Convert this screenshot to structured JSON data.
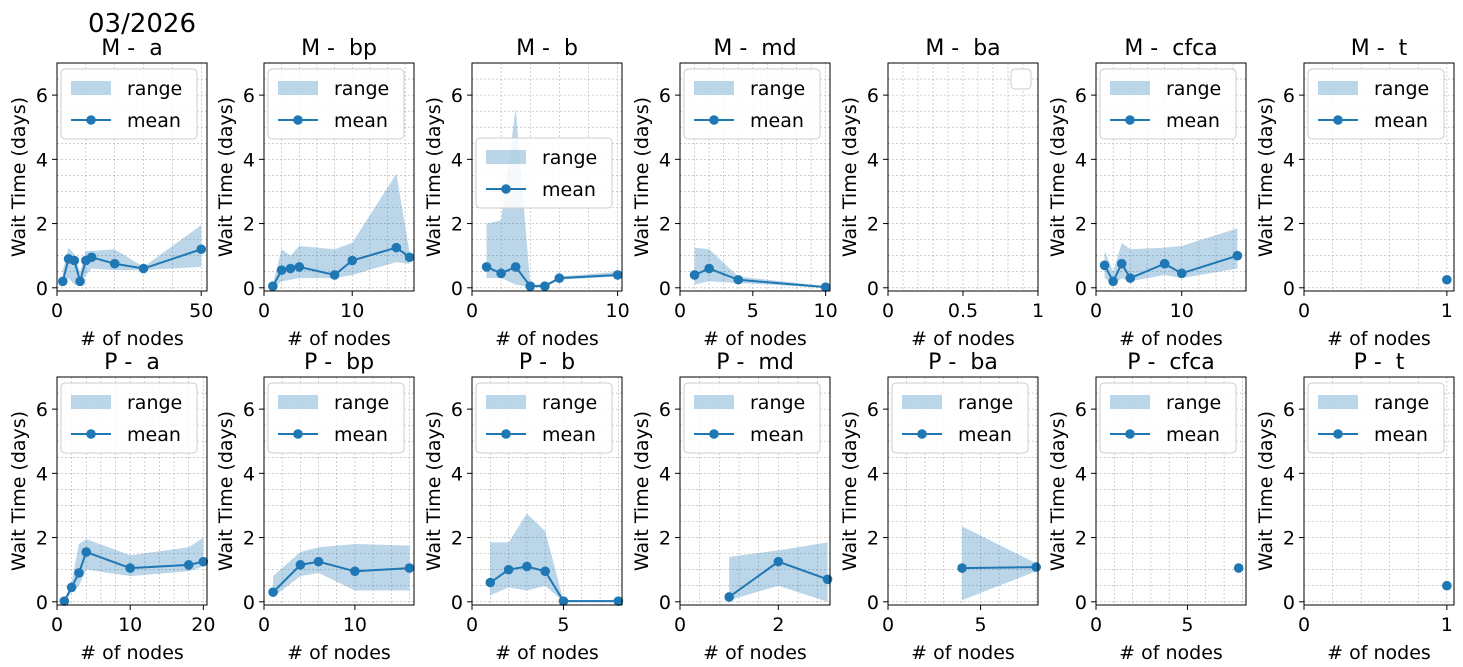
{
  "figure_title": "03/2026",
  "colors": {
    "line": "#1f77b4",
    "band": "#1f77b4",
    "grid": "#b0b0b0"
  },
  "legend_labels": {
    "range": "range",
    "mean": "mean"
  },
  "chart_data": [
    {
      "type": "line",
      "title": "M -  a",
      "xlabel": "# of nodes",
      "ylabel": "Wait Time (days)",
      "xlim": [
        0,
        52
      ],
      "ylim": [
        -0.1,
        7
      ],
      "xticks": [
        0,
        50
      ],
      "yticks": [
        0,
        2,
        4,
        6
      ],
      "grid": true,
      "legend": "upper-right",
      "x": [
        2,
        4,
        6,
        8,
        10,
        12,
        20,
        30,
        50
      ],
      "mean": [
        0.2,
        0.9,
        0.85,
        0.2,
        0.85,
        0.95,
        0.75,
        0.6,
        1.2
      ],
      "min": [
        0.05,
        0.3,
        0.1,
        0.05,
        0.4,
        0.6,
        0.55,
        0.55,
        0.65
      ],
      "max": [
        0.55,
        1.25,
        1.05,
        0.5,
        1.15,
        1.15,
        1.2,
        0.65,
        1.95
      ]
    },
    {
      "type": "line",
      "title": "M -  bp",
      "xlabel": "# of nodes",
      "ylabel": "Wait Time (days)",
      "xlim": [
        0,
        17
      ],
      "ylim": [
        -0.1,
        7
      ],
      "xticks": [
        0,
        10
      ],
      "yticks": [
        0,
        2,
        4,
        6
      ],
      "grid": true,
      "legend": "upper-right",
      "x": [
        1,
        2,
        3,
        4,
        8,
        10,
        15,
        16.5
      ],
      "mean": [
        0.05,
        0.55,
        0.6,
        0.65,
        0.4,
        0.85,
        1.25,
        0.95
      ],
      "min": [
        0,
        0.2,
        0.25,
        0.3,
        0.3,
        0.4,
        0.8,
        0.75
      ],
      "max": [
        0.1,
        1.2,
        1.0,
        1.3,
        1.2,
        1.4,
        3.55,
        1.1
      ]
    },
    {
      "type": "line",
      "title": "M -  b",
      "xlabel": "# of nodes",
      "ylabel": "Wait Time (days)",
      "xlim": [
        0,
        10.3
      ],
      "ylim": [
        -0.1,
        7
      ],
      "xticks": [
        0,
        10
      ],
      "yticks": [
        0,
        2,
        4,
        6
      ],
      "grid": true,
      "legend": "center-right",
      "x": [
        1,
        2,
        3,
        4,
        5,
        6,
        10
      ],
      "mean": [
        0.65,
        0.45,
        0.65,
        0.05,
        0.05,
        0.3,
        0.4
      ],
      "min": [
        0.3,
        0.3,
        0.1,
        0.02,
        0.02,
        0.25,
        0.35
      ],
      "max": [
        2.0,
        2.1,
        5.6,
        0.1,
        0.1,
        0.35,
        0.5
      ]
    },
    {
      "type": "line",
      "title": "M -  md",
      "xlabel": "# of nodes",
      "ylabel": "Wait Time (days)",
      "xlim": [
        0,
        10.3
      ],
      "ylim": [
        -0.1,
        7
      ],
      "xticks": [
        0,
        5,
        10
      ],
      "yticks": [
        0,
        2,
        4,
        6
      ],
      "grid": true,
      "legend": "upper-right",
      "x": [
        1,
        2,
        4,
        10
      ],
      "mean": [
        0.4,
        0.6,
        0.25,
        0.02
      ],
      "min": [
        0.1,
        0.2,
        0.15,
        0.0
      ],
      "max": [
        1.25,
        1.2,
        0.35,
        0.05
      ]
    },
    {
      "type": "line",
      "title": "M -  ba",
      "xlabel": "# of nodes",
      "ylabel": "Wait Time (days)",
      "xlim": [
        0,
        1
      ],
      "ylim": [
        -0.1,
        7
      ],
      "xticks": [
        0.0,
        0.5,
        1.0
      ],
      "yticks": [
        0,
        2,
        4,
        6
      ],
      "grid": true,
      "legend": "upper-right-empty",
      "x": [],
      "mean": [],
      "min": [],
      "max": []
    },
    {
      "type": "line",
      "title": "M -  cfca",
      "xlabel": "# of nodes",
      "ylabel": "Wait Time (days)",
      "xlim": [
        0,
        17.5
      ],
      "ylim": [
        -0.1,
        7
      ],
      "xticks": [
        0,
        10
      ],
      "yticks": [
        0,
        2,
        4,
        6
      ],
      "grid": true,
      "legend": "upper-right",
      "x": [
        1,
        2,
        3,
        4,
        8,
        10,
        16.5
      ],
      "mean": [
        0.7,
        0.2,
        0.75,
        0.3,
        0.75,
        0.45,
        1.0
      ],
      "min": [
        0.3,
        0.1,
        0.3,
        0.2,
        0.4,
        0.3,
        0.6
      ],
      "max": [
        1.15,
        0.5,
        1.4,
        1.2,
        1.25,
        1.3,
        1.85
      ]
    },
    {
      "type": "line",
      "title": "M -  t",
      "xlabel": "# of nodes",
      "ylabel": "Wait Time (days)",
      "xlim": [
        0,
        1.05
      ],
      "ylim": [
        -0.1,
        7
      ],
      "xticks": [
        0,
        1
      ],
      "yticks": [
        0,
        2,
        4,
        6
      ],
      "grid": true,
      "legend": "upper-right",
      "x": [
        1
      ],
      "mean": [
        0.25
      ],
      "min": [
        0.25
      ],
      "max": [
        0.25
      ]
    },
    {
      "type": "line",
      "title": "P -  a",
      "xlabel": "# of nodes",
      "ylabel": "Wait Time (days)",
      "xlim": [
        0,
        20.5
      ],
      "ylim": [
        -0.1,
        7
      ],
      "xticks": [
        0,
        10,
        20
      ],
      "yticks": [
        0,
        2,
        4,
        6
      ],
      "grid": true,
      "legend": "upper-right",
      "x": [
        1,
        2,
        3,
        4,
        10,
        18,
        20
      ],
      "mean": [
        0.02,
        0.45,
        0.9,
        1.55,
        1.05,
        1.15,
        1.25
      ],
      "min": [
        0.0,
        0.3,
        0.5,
        1.0,
        0.8,
        0.95,
        1.1
      ],
      "max": [
        0.05,
        0.6,
        1.8,
        1.95,
        1.45,
        1.7,
        2.0
      ]
    },
    {
      "type": "line",
      "title": "P -  bp",
      "xlabel": "# of nodes",
      "ylabel": "Wait Time (days)",
      "xlim": [
        0,
        16.5
      ],
      "ylim": [
        -0.1,
        7
      ],
      "xticks": [
        0,
        10
      ],
      "yticks": [
        0,
        2,
        4,
        6
      ],
      "grid": true,
      "legend": "upper-right",
      "x": [
        1,
        4,
        6,
        10,
        16
      ],
      "mean": [
        0.3,
        1.15,
        1.25,
        0.95,
        1.05
      ],
      "min": [
        0.15,
        0.8,
        0.9,
        0.35,
        0.35
      ],
      "max": [
        0.8,
        1.55,
        1.7,
        1.8,
        1.75
      ]
    },
    {
      "type": "line",
      "title": "P -  b",
      "xlabel": "# of nodes",
      "ylabel": "Wait Time (days)",
      "xlim": [
        0,
        8.2
      ],
      "ylim": [
        -0.1,
        7
      ],
      "xticks": [
        0,
        5
      ],
      "yticks": [
        0,
        2,
        4,
        6
      ],
      "grid": true,
      "legend": "upper-right",
      "x": [
        1,
        2,
        3,
        4,
        5,
        8
      ],
      "mean": [
        0.6,
        1.0,
        1.1,
        0.95,
        0.02,
        0.02
      ],
      "min": [
        0.2,
        0.45,
        0.35,
        0.5,
        0.0,
        0.0
      ],
      "max": [
        1.85,
        1.85,
        2.75,
        2.2,
        0.05,
        0.05
      ]
    },
    {
      "type": "line",
      "title": "P -  md",
      "xlabel": "# of nodes",
      "ylabel": "Wait Time (days)",
      "xlim": [
        0,
        3.05
      ],
      "ylim": [
        -0.1,
        7
      ],
      "xticks": [
        0,
        2
      ],
      "yticks": [
        0,
        2,
        4,
        6
      ],
      "grid": true,
      "legend": "upper-right",
      "x": [
        1,
        2,
        3
      ],
      "mean": [
        0.15,
        1.25,
        0.7
      ],
      "min": [
        0.05,
        0.5,
        0.0
      ],
      "max": [
        1.4,
        1.6,
        1.85
      ]
    },
    {
      "type": "line",
      "title": "P -  ba",
      "xlabel": "# of nodes",
      "ylabel": "Wait Time (days)",
      "xlim": [
        0,
        8.1
      ],
      "ylim": [
        -0.1,
        7
      ],
      "xticks": [
        0,
        5
      ],
      "yticks": [
        0,
        2,
        4,
        6
      ],
      "grid": true,
      "legend": "upper-right",
      "x": [
        4,
        8
      ],
      "mean": [
        1.05,
        1.08
      ],
      "min": [
        0.05,
        0.95
      ],
      "max": [
        2.35,
        1.2
      ]
    },
    {
      "type": "line",
      "title": "P -  cfca",
      "xlabel": "# of nodes",
      "ylabel": "Wait Time (days)",
      "xlim": [
        0,
        8.2
      ],
      "ylim": [
        -0.1,
        7
      ],
      "xticks": [
        0,
        5
      ],
      "yticks": [
        0,
        2,
        4,
        6
      ],
      "grid": true,
      "legend": "upper-right",
      "x": [
        7.8
      ],
      "mean": [
        1.05
      ],
      "min": [
        1.05
      ],
      "max": [
        1.05
      ]
    },
    {
      "type": "line",
      "title": "P -  t",
      "xlabel": "# of nodes",
      "ylabel": "Wait Time (days)",
      "xlim": [
        0,
        1.05
      ],
      "ylim": [
        -0.1,
        7
      ],
      "xticks": [
        0,
        1
      ],
      "yticks": [
        0,
        2,
        4,
        6
      ],
      "grid": true,
      "legend": "upper-right",
      "x": [
        1
      ],
      "mean": [
        0.5
      ],
      "min": [
        0.5
      ],
      "max": [
        0.5
      ]
    }
  ]
}
